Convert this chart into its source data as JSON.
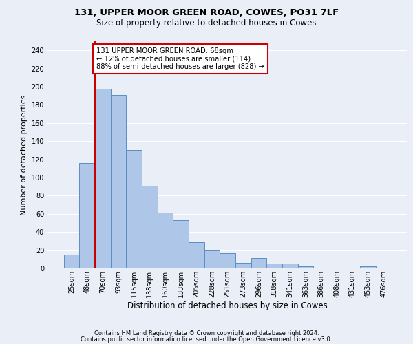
{
  "title1": "131, UPPER MOOR GREEN ROAD, COWES, PO31 7LF",
  "title2": "Size of property relative to detached houses in Cowes",
  "xlabel": "Distribution of detached houses by size in Cowes",
  "ylabel": "Number of detached properties",
  "footer1": "Contains HM Land Registry data © Crown copyright and database right 2024.",
  "footer2": "Contains public sector information licensed under the Open Government Licence v3.0.",
  "annotation_line1": "131 UPPER MOOR GREEN ROAD: 68sqm",
  "annotation_line2": "← 12% of detached houses are smaller (114)",
  "annotation_line3": "88% of semi-detached houses are larger (828) →",
  "bar_labels": [
    "25sqm",
    "48sqm",
    "70sqm",
    "93sqm",
    "115sqm",
    "138sqm",
    "160sqm",
    "183sqm",
    "205sqm",
    "228sqm",
    "251sqm",
    "273sqm",
    "296sqm",
    "318sqm",
    "341sqm",
    "363sqm",
    "386sqm",
    "408sqm",
    "431sqm",
    "453sqm",
    "476sqm"
  ],
  "bar_values": [
    15,
    116,
    198,
    191,
    130,
    91,
    61,
    53,
    29,
    20,
    17,
    6,
    11,
    5,
    5,
    2,
    0,
    0,
    0,
    2,
    0
  ],
  "bar_color": "#aec6e8",
  "bar_edge_color": "#5a8fc3",
  "marker_color": "#cc0000",
  "ylim": [
    0,
    250
  ],
  "yticks": [
    0,
    20,
    40,
    60,
    80,
    100,
    120,
    140,
    160,
    180,
    200,
    220,
    240
  ],
  "bg_color": "#eaeff7",
  "plot_bg_color": "#eaeff7",
  "grid_color": "#ffffff",
  "annotation_box_color": "#cc0000",
  "title1_fontsize": 9.5,
  "title2_fontsize": 8.5,
  "ylabel_fontsize": 8,
  "xlabel_fontsize": 8.5,
  "tick_fontsize": 7,
  "annotation_fontsize": 7.2,
  "footer_fontsize": 6.0
}
